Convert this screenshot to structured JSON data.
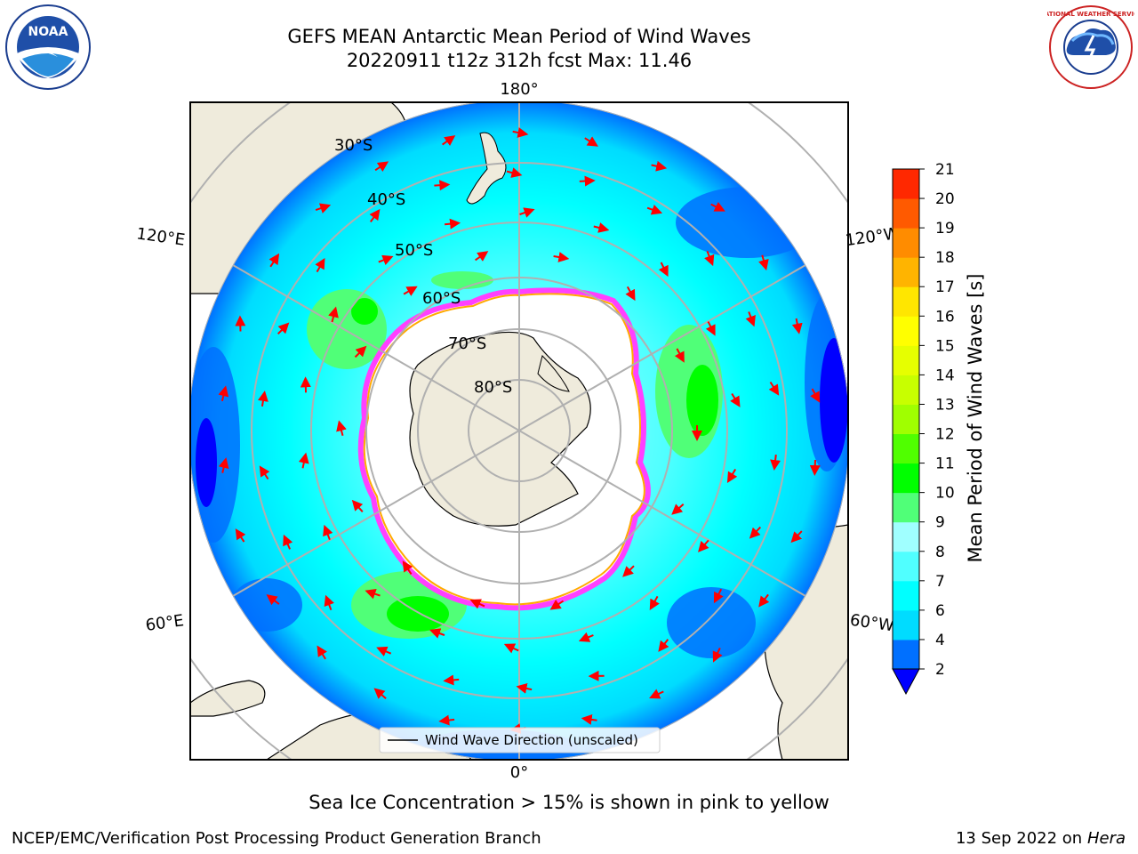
{
  "title": {
    "line1": "GEFS MEAN Antarctic Mean Period of Wind Waves",
    "line2": "20220911 t12z 312h fcst   Max: 11.46"
  },
  "logos": {
    "noaa": "NOAA",
    "nws": "NATIONAL WEATHER SERVICE"
  },
  "map": {
    "projection": "south-polar-stereographic",
    "longitude_labels": [
      "180°",
      "120°E",
      "120°W",
      "60°E",
      "60°W",
      "0°"
    ],
    "latitude_labels": [
      "30°S",
      "40°S",
      "50°S",
      "60°S",
      "70°S",
      "80°S"
    ],
    "legend_label": "Wind Wave Direction (unscaled)",
    "arrow_color": "#ff0000",
    "land_color": "#efebdc",
    "sea_ice_colors": [
      "#ff40ff",
      "#ffaa00",
      "#ffff00"
    ]
  },
  "colorbar": {
    "label": "Mean Period of Wind Waves [s]",
    "ticks": [
      "2",
      "4",
      "6",
      "7",
      "8",
      "9",
      "10",
      "11",
      "12",
      "13",
      "14",
      "15",
      "16",
      "17",
      "18",
      "19",
      "20",
      "21"
    ],
    "colors": [
      "#0070ff",
      "#00dcff",
      "#00ffff",
      "#50ffff",
      "#a0ffff",
      "#50ff78",
      "#00ff00",
      "#50ff00",
      "#a0ff00",
      "#c8ff00",
      "#e6ff00",
      "#ffff00",
      "#ffe600",
      "#ffb400",
      "#ff8c00",
      "#ff5a00",
      "#ff2800",
      "#ff0000"
    ],
    "extend_color": "#0000ff"
  },
  "captions": {
    "sea_ice": "Sea Ice Concentration > 15% is shown in pink to yellow",
    "footer_left": "NCEP/EMC/Verification Post Processing Product Generation Branch",
    "footer_right_date": "13 Sep 2022 on",
    "footer_right_machine": "Hera"
  }
}
